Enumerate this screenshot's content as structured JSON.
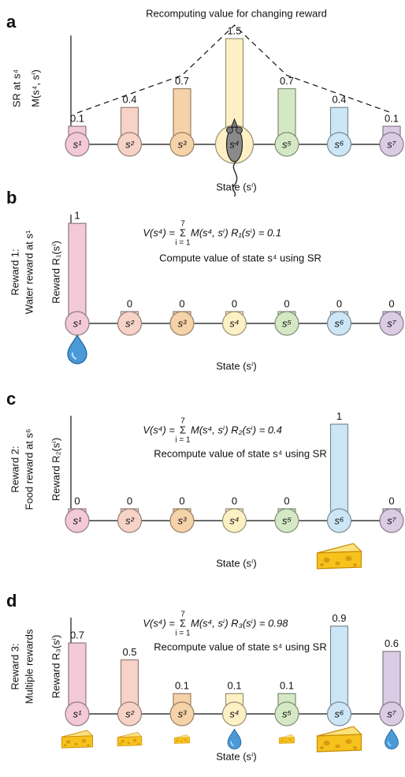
{
  "chart_data": [
    {
      "type": "bar",
      "panel_label": "a",
      "title": "Recomputing value for changing reward",
      "side_label": [
        "SR at s⁴"
      ],
      "y_label": "M(s⁴, sⁱ)",
      "x_label": "State (sⁱ)",
      "categories": [
        "s¹",
        "s²",
        "s³",
        "s⁴",
        "s⁵",
        "s⁶",
        "s⁷"
      ],
      "values": [
        0.1,
        0.4,
        0.7,
        1.5,
        0.7,
        0.4,
        0.1
      ],
      "colors": [
        "#f2c9d6",
        "#f6d3c6",
        "#f6d2a8",
        "#fdf0c4",
        "#d5e8c4",
        "#cde6f6",
        "#dccbe4"
      ],
      "ylim": [
        0,
        1.55
      ],
      "dashed_line": true
    },
    {
      "type": "bar",
      "panel_label": "b",
      "side_label": [
        "Reward 1:",
        "Water reward at s¹"
      ],
      "y_label": "Reward R₁(sⁱ)",
      "x_label": "State (sⁱ)",
      "formula": {
        "lhs": "V(s⁴) =",
        "sum": "Σ",
        "upper": "7",
        "lower": "i = 1",
        "rhs": "M(s⁴, sⁱ) R₁(sⁱ) = 0.1"
      },
      "subtitle": "Compute value of state s⁴ using SR",
      "categories": [
        "s¹",
        "s²",
        "s³",
        "s⁴",
        "s⁵",
        "s⁶",
        "s⁷"
      ],
      "values": [
        1,
        0,
        0,
        0,
        0,
        0,
        0
      ],
      "colors": [
        "#f2c9d6",
        "#f6d3c6",
        "#f6d2a8",
        "#fdf0c4",
        "#d5e8c4",
        "#cde6f6",
        "#dccbe4"
      ],
      "ylim": [
        0,
        1.1
      ]
    },
    {
      "type": "bar",
      "panel_label": "c",
      "side_label": [
        "Reward 2:",
        "Food reward at s⁶"
      ],
      "y_label": "Reward R₂(sⁱ)",
      "x_label": "State (sⁱ)",
      "formula": {
        "lhs": "V(s⁴) =",
        "sum": "Σ",
        "upper": "7",
        "lower": "i = 1",
        "rhs": "M(s⁴, sⁱ) R₂(sⁱ) = 0.4"
      },
      "subtitle": "Recompute value of state s⁴ using SR",
      "categories": [
        "s¹",
        "s²",
        "s³",
        "s⁴",
        "s⁵",
        "s⁶",
        "s⁷"
      ],
      "values": [
        0,
        0,
        0,
        0,
        0,
        1,
        0
      ],
      "colors": [
        "#f2c9d6",
        "#f6d3c6",
        "#f6d2a8",
        "#fdf0c4",
        "#d5e8c4",
        "#cde6f6",
        "#dccbe4"
      ],
      "ylim": [
        0,
        1.1
      ]
    },
    {
      "type": "bar",
      "panel_label": "d",
      "side_label": [
        "Reward 3:",
        "Multiple rewards"
      ],
      "y_label": "Reward R₃(sⁱ)",
      "x_label": "State (sⁱ)",
      "formula": {
        "lhs": "V(s⁴) =",
        "sum": "Σ",
        "upper": "7",
        "lower": "i = 1",
        "rhs": "M(s⁴, sⁱ) R₃(sⁱ) = 0.98"
      },
      "subtitle": "Recompute value of state s⁴ using SR",
      "categories": [
        "s¹",
        "s²",
        "s³",
        "s⁴",
        "s⁵",
        "s⁶",
        "s⁷"
      ],
      "values": [
        0.7,
        0.5,
        0.1,
        0.1,
        0.1,
        0.9,
        0.6
      ],
      "colors": [
        "#f2c9d6",
        "#f6d3c6",
        "#f6d2a8",
        "#fdf0c4",
        "#d5e8c4",
        "#cde6f6",
        "#dccbe4"
      ],
      "ylim": [
        0,
        1.0
      ]
    }
  ]
}
